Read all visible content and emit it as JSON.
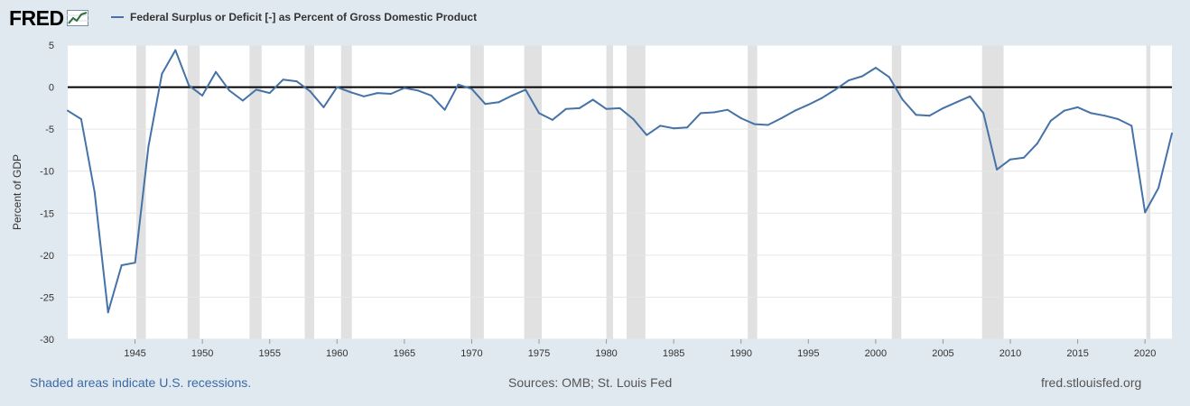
{
  "brand": {
    "name": "FRED"
  },
  "footer": {
    "note": "Shaded areas indicate U.S. recessions.",
    "sources": "Sources: OMB; St. Louis Fed",
    "site": "fred.stlouisfed.org"
  },
  "chart_data": {
    "type": "line",
    "title": "",
    "xlabel": "",
    "ylabel": "Percent of GDP",
    "xlim": [
      1940,
      2022
    ],
    "ylim": [
      -30,
      5
    ],
    "y_ticks": [
      5,
      0,
      -5,
      -10,
      -15,
      -20,
      -25,
      -30
    ],
    "x_ticks": [
      1945,
      1950,
      1955,
      1960,
      1965,
      1970,
      1975,
      1980,
      1985,
      1990,
      1995,
      2000,
      2005,
      2010,
      2015,
      2020
    ],
    "grid": true,
    "zero_line": true,
    "legend": "top-left",
    "series": [
      {
        "name": "Federal Surplus or Deficit [-] as Percent of Gross Domestic Product",
        "color": "#4572a7",
        "x": [
          1940,
          1941,
          1942,
          1943,
          1944,
          1945,
          1946,
          1947,
          1948,
          1949,
          1950,
          1951,
          1952,
          1953,
          1954,
          1955,
          1956,
          1957,
          1958,
          1959,
          1960,
          1961,
          1962,
          1963,
          1964,
          1965,
          1966,
          1967,
          1968,
          1969,
          1970,
          1971,
          1972,
          1973,
          1974,
          1975,
          1976,
          1977,
          1978,
          1979,
          1980,
          1981,
          1982,
          1983,
          1984,
          1985,
          1986,
          1987,
          1988,
          1989,
          1990,
          1991,
          1992,
          1993,
          1994,
          1995,
          1996,
          1997,
          1998,
          1999,
          2000,
          2001,
          2002,
          2003,
          2004,
          2005,
          2006,
          2007,
          2008,
          2009,
          2010,
          2011,
          2012,
          2013,
          2014,
          2015,
          2016,
          2017,
          2018,
          2019,
          2020,
          2021,
          2022
        ],
        "values": [
          -2.8,
          -3.8,
          -12.5,
          -26.8,
          -21.2,
          -20.9,
          -7.0,
          1.6,
          4.4,
          0.2,
          -1.0,
          1.8,
          -0.4,
          -1.6,
          -0.3,
          -0.7,
          0.9,
          0.7,
          -0.5,
          -2.4,
          0.0,
          -0.6,
          -1.1,
          -0.7,
          -0.8,
          -0.1,
          -0.4,
          -1.0,
          -2.7,
          0.3,
          -0.2,
          -2.0,
          -1.8,
          -1.0,
          -0.3,
          -3.1,
          -3.9,
          -2.6,
          -2.5,
          -1.5,
          -2.6,
          -2.5,
          -3.8,
          -5.7,
          -4.6,
          -4.9,
          -4.8,
          -3.1,
          -3.0,
          -2.7,
          -3.7,
          -4.4,
          -4.5,
          -3.7,
          -2.8,
          -2.1,
          -1.3,
          -0.3,
          0.8,
          1.3,
          2.3,
          1.2,
          -1.5,
          -3.3,
          -3.4,
          -2.5,
          -1.8,
          -1.1,
          -3.1,
          -9.8,
          -8.6,
          -8.4,
          -6.7,
          -4.0,
          -2.8,
          -2.4,
          -3.1,
          -3.4,
          -3.8,
          -4.6,
          -14.9,
          -12.0,
          -5.5
        ]
      }
    ],
    "recessions": [
      [
        1945.1,
        1945.8
      ],
      [
        1948.9,
        1949.8
      ],
      [
        1953.5,
        1954.4
      ],
      [
        1957.6,
        1958.3
      ],
      [
        1960.3,
        1961.1
      ],
      [
        1969.9,
        1970.9
      ],
      [
        1973.9,
        1975.2
      ],
      [
        1980.0,
        1980.5
      ],
      [
        1981.5,
        1982.9
      ],
      [
        1990.5,
        1991.2
      ],
      [
        2001.2,
        2001.9
      ],
      [
        2007.9,
        2009.5
      ],
      [
        2020.1,
        2020.4
      ]
    ]
  }
}
